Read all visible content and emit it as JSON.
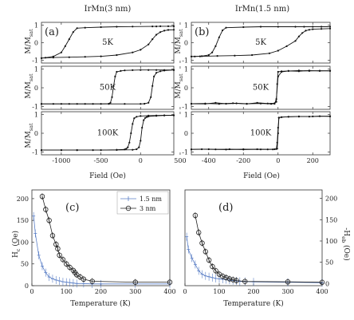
{
  "chart_data": [
    {
      "type": "line",
      "title": "IrMn(3 nm)",
      "xlabel": "Field (Oe)",
      "x_ticks": [
        "-1000",
        "-500",
        "0",
        "500"
      ],
      "xlim": [
        -1250,
        420
      ],
      "panels": [
        {
          "label": "(a)",
          "temp": "5K",
          "ylabel": "M/Msat",
          "y_ticks": [
            "1",
            "0",
            "-1"
          ],
          "ylim": [
            -1.15,
            1.15
          ],
          "series": [
            {
              "kind": "desc",
              "x": [
                420,
                350,
                250,
                200,
                150,
                -100,
                -300,
                -500,
                -700,
                -800,
                -850,
                -900,
                -950,
                -1000,
                -1100,
                -1200,
                -1250
              ],
              "y": [
                0.93,
                0.93,
                0.93,
                0.92,
                0.92,
                0.91,
                0.9,
                0.88,
                0.85,
                0.82,
                0.6,
                0.2,
                -0.2,
                -0.55,
                -0.78,
                -0.85,
                -0.87
              ]
            },
            {
              "kind": "asc",
              "x": [
                -1250,
                -1100,
                -900,
                -700,
                -500,
                -300,
                -100,
                0,
                100,
                150,
                200,
                250,
                300,
                350,
                420
              ],
              "y": [
                -0.87,
                -0.84,
                -0.82,
                -0.8,
                -0.77,
                -0.7,
                -0.55,
                -0.4,
                -0.1,
                0.2,
                0.45,
                0.6,
                0.68,
                0.72,
                0.73
              ]
            }
          ]
        },
        {
          "label": "",
          "temp": "50K",
          "ylabel": "M/Msat",
          "y_ticks": [
            "1",
            "0",
            "-1"
          ],
          "ylim": [
            -1.15,
            1.15
          ],
          "series": [
            {
              "kind": "desc",
              "x": [
                420,
                300,
                200,
                100,
                0,
                -100,
                -200,
                -250,
                -300,
                -320,
                -340,
                -360,
                -380,
                -400,
                -500,
                -700,
                -900,
                -1100,
                -1250
              ],
              "y": [
                0.95,
                0.95,
                0.95,
                0.95,
                0.95,
                0.94,
                0.93,
                0.9,
                0.85,
                0.6,
                0.1,
                -0.5,
                -0.8,
                -0.85,
                -0.86,
                -0.86,
                -0.86,
                -0.86,
                -0.86
              ]
            },
            {
              "kind": "asc",
              "x": [
                -1250,
                -1000,
                -800,
                -600,
                -400,
                -200,
                0,
                50,
                100,
                130,
                150,
                170,
                200,
                250,
                300,
                420
              ],
              "y": [
                -0.86,
                -0.86,
                -0.86,
                -0.86,
                -0.86,
                -0.86,
                -0.86,
                -0.85,
                -0.8,
                -0.5,
                0.1,
                0.6,
                0.8,
                0.88,
                0.92,
                0.95
              ]
            }
          ]
        },
        {
          "label": "",
          "temp": "100K",
          "ylabel": "M/Msat",
          "y_ticks": [
            "1",
            "0",
            "-1"
          ],
          "ylim": [
            -1.15,
            1.15
          ],
          "series": [
            {
              "kind": "desc",
              "x": [
                420,
                300,
                200,
                100,
                0,
                -50,
                -80,
                -100,
                -120,
                -140,
                -160,
                -180,
                -200,
                -300,
                -500,
                -800,
                -1000,
                -1250
              ],
              "y": [
                0.96,
                0.96,
                0.95,
                0.94,
                0.92,
                0.88,
                0.8,
                0.5,
                0.0,
                -0.5,
                -0.75,
                -0.82,
                -0.86,
                -0.88,
                -0.9,
                -0.9,
                -0.9,
                -0.9
              ]
            },
            {
              "kind": "asc",
              "x": [
                -1250,
                -1000,
                -800,
                -600,
                -300,
                -100,
                -50,
                -20,
                0,
                20,
                40,
                60,
                80,
                100,
                200,
                300,
                420
              ],
              "y": [
                -0.9,
                -0.9,
                -0.9,
                -0.9,
                -0.89,
                -0.88,
                -0.85,
                -0.75,
                -0.4,
                0.3,
                0.7,
                0.82,
                0.87,
                0.9,
                0.93,
                0.95,
                0.96
              ]
            }
          ]
        }
      ]
    },
    {
      "type": "line",
      "title": "IrMn(1.5 nm)",
      "xlabel": "Field (Oe)",
      "x_ticks": [
        "-400",
        "-200",
        "0",
        "200"
      ],
      "xlim": [
        -500,
        300
      ],
      "panels": [
        {
          "label": "(b)",
          "temp": "5K",
          "ylabel": "",
          "y_ticks": [
            "1",
            "0",
            "-1"
          ],
          "ylim": [
            -1.15,
            1.15
          ],
          "series": [
            {
              "kind": "desc",
              "x": [
                300,
                250,
                200,
                150,
                100,
                0,
                -100,
                -200,
                -300,
                -320,
                -340,
                -360,
                -380,
                -400,
                -440,
                -480,
                -500
              ],
              "y": [
                0.9,
                0.9,
                0.9,
                0.9,
                0.9,
                0.9,
                0.9,
                0.88,
                0.85,
                0.7,
                0.3,
                -0.2,
                -0.55,
                -0.7,
                -0.76,
                -0.78,
                -0.78
              ]
            },
            {
              "kind": "asc",
              "x": [
                -500,
                -450,
                -350,
                -250,
                -150,
                -50,
                0,
                50,
                100,
                120,
                140,
                160,
                180,
                200,
                250,
                300
              ],
              "y": [
                -0.78,
                -0.77,
                -0.75,
                -0.73,
                -0.7,
                -0.6,
                -0.45,
                -0.2,
                0.1,
                0.35,
                0.55,
                0.68,
                0.73,
                0.76,
                0.78,
                0.8
              ]
            }
          ]
        },
        {
          "label": "",
          "temp": "50K",
          "ylabel": "",
          "y_ticks": [
            "1",
            "0",
            "-1"
          ],
          "ylim": [
            -1.15,
            1.15
          ],
          "series": [
            {
              "kind": "desc",
              "x": [
                300,
                240,
                180,
                120,
                60,
                20,
                0,
                -5,
                -10,
                -20,
                -60,
                -120,
                -180,
                -240,
                -300,
                -360,
                -420,
                -500
              ],
              "y": [
                0.9,
                0.91,
                0.9,
                0.92,
                0.9,
                0.88,
                0.85,
                0.2,
                -0.75,
                -0.82,
                -0.84,
                -0.8,
                -0.86,
                -0.83,
                -0.85,
                -0.8,
                -0.86,
                -0.85
              ]
            },
            {
              "kind": "asc",
              "x": [
                -500,
                -420,
                -340,
                -260,
                -180,
                -100,
                -40,
                -20,
                -10,
                0,
                20,
                60,
                120,
                180,
                240,
                300
              ],
              "y": [
                -0.85,
                -0.84,
                -0.86,
                -0.82,
                -0.85,
                -0.84,
                -0.86,
                -0.85,
                -0.6,
                0.6,
                0.85,
                0.9,
                0.88,
                0.92,
                0.9,
                0.91
              ]
            }
          ]
        },
        {
          "label": "",
          "temp": "100K",
          "ylabel": "",
          "y_ticks": [
            "1",
            "0",
            "-1"
          ],
          "ylim": [
            -1.15,
            1.15
          ],
          "series": [
            {
              "kind": "desc",
              "x": [
                300,
                240,
                180,
                120,
                60,
                20,
                5,
                0,
                -5,
                -20,
                -60,
                -120,
                -200,
                -280,
                -360,
                -440,
                -500
              ],
              "y": [
                0.9,
                0.91,
                0.89,
                0.9,
                0.88,
                0.86,
                0.84,
                0.0,
                -0.82,
                -0.85,
                -0.86,
                -0.85,
                -0.87,
                -0.85,
                -0.86,
                -0.85,
                -0.86
              ]
            },
            {
              "kind": "asc",
              "x": [
                -500,
                -400,
                -300,
                -200,
                -100,
                -30,
                -10,
                -5,
                0,
                5,
                20,
                60,
                120,
                200,
                300
              ],
              "y": [
                -0.86,
                -0.85,
                -0.87,
                -0.85,
                -0.86,
                -0.86,
                -0.84,
                -0.5,
                0.3,
                0.82,
                0.86,
                0.88,
                0.89,
                0.9,
                0.91
              ]
            }
          ]
        }
      ]
    },
    {
      "type": "scatter",
      "label": "(c)",
      "xlabel": "Temperature (K)",
      "ylabel": "Hc (Oe)",
      "xlim": [
        0,
        400
      ],
      "ylim": [
        0,
        220
      ],
      "x_ticks": [
        "0",
        "100",
        "200",
        "300",
        "400"
      ],
      "y_ticks": [
        "0",
        "50",
        "100",
        "150",
        "200"
      ],
      "legend": "top-right",
      "series": [
        {
          "name": "1.5 nm",
          "color": "#5b7fc6",
          "marker": "plus",
          "x": [
            5,
            10,
            20,
            30,
            40,
            50,
            60,
            70,
            80,
            90,
            100,
            110,
            120,
            130,
            150,
            175,
            200,
            300,
            400
          ],
          "y": [
            160,
            120,
            70,
            45,
            30,
            20,
            16,
            13,
            11,
            9,
            8,
            7,
            6,
            5,
            5,
            4,
            4,
            4,
            4
          ]
        },
        {
          "name": "3 nm",
          "color": "#222222",
          "marker": "circle",
          "x": [
            30,
            40,
            50,
            60,
            70,
            75,
            80,
            90,
            100,
            110,
            120,
            125,
            130,
            140,
            150,
            175,
            300,
            400
          ],
          "y": [
            205,
            175,
            150,
            115,
            95,
            85,
            70,
            60,
            50,
            42,
            35,
            30,
            25,
            20,
            15,
            10,
            8,
            8
          ]
        }
      ]
    },
    {
      "type": "scatter",
      "label": "(d)",
      "xlabel": "Temperature (K)",
      "ylabel": "-Heb (Oe)",
      "xlim": [
        0,
        400
      ],
      "ylim": [
        -5,
        220
      ],
      "x_ticks": [
        "0",
        "100",
        "200",
        "300",
        "400"
      ],
      "y_ticks": [
        "0",
        "50",
        "100",
        "150",
        "200"
      ],
      "series": [
        {
          "name": "1.5 nm",
          "color": "#5b7fc6",
          "marker": "plus",
          "x": [
            5,
            10,
            20,
            30,
            40,
            50,
            60,
            70,
            80,
            90,
            100,
            110,
            120,
            130,
            140,
            150,
            160,
            175,
            200,
            300,
            400
          ],
          "y": [
            110,
            80,
            60,
            45,
            30,
            22,
            18,
            16,
            14,
            12,
            11,
            10,
            9,
            8,
            7,
            6,
            5,
            5,
            4,
            3,
            2
          ]
        },
        {
          "name": "3 nm",
          "color": "#222222",
          "marker": "circle",
          "x": [
            30,
            40,
            50,
            60,
            70,
            80,
            90,
            100,
            110,
            120,
            130,
            140,
            150,
            175,
            300,
            400
          ],
          "y": [
            160,
            120,
            95,
            75,
            55,
            40,
            30,
            22,
            17,
            14,
            11,
            9,
            7,
            5,
            4,
            3
          ]
        }
      ]
    }
  ]
}
